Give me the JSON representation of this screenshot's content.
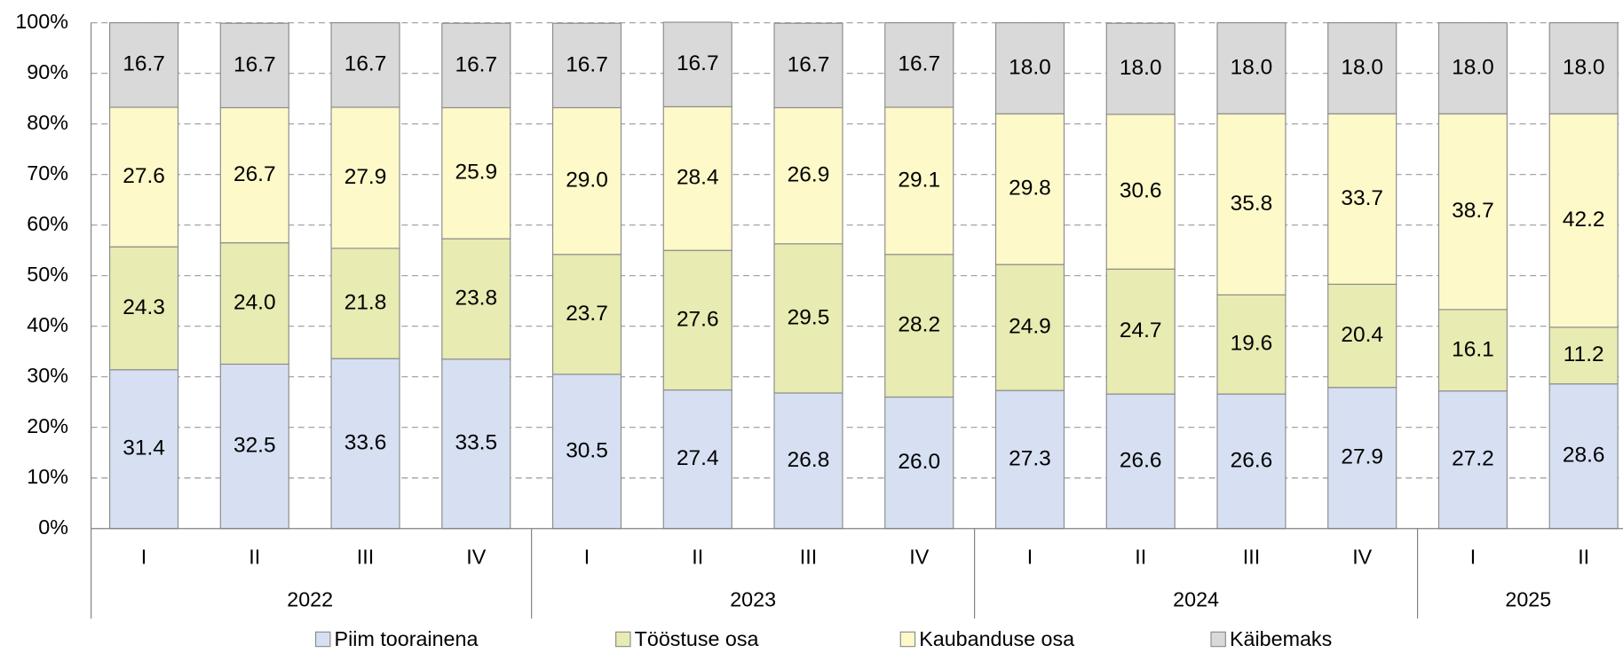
{
  "chart_data": {
    "type": "stacked_bar",
    "groups": [
      {
        "label": "2022",
        "categories": [
          "I",
          "II",
          "III",
          "IV"
        ]
      },
      {
        "label": "2023",
        "categories": [
          "I",
          "II",
          "III",
          "IV"
        ]
      },
      {
        "label": "2024",
        "categories": [
          "I",
          "II",
          "III",
          "IV"
        ]
      },
      {
        "label": "2025",
        "categories": [
          "I",
          "II"
        ]
      }
    ],
    "series": [
      {
        "name": "Piim toorainena",
        "color": "#d6e0f2",
        "values": [
          31.4,
          32.5,
          33.6,
          33.5,
          30.5,
          27.4,
          26.8,
          26.0,
          27.3,
          26.6,
          26.6,
          27.9,
          27.2,
          28.6
        ],
        "value_labels": [
          "31.4",
          "32.5",
          "33.6",
          "33.5",
          "30.5",
          "27.4",
          "26.8",
          "26.0",
          "27.3",
          "26.6",
          "26.6",
          "27.9",
          "27.2",
          "28.6"
        ]
      },
      {
        "name": "Tööstuse osa",
        "color": "#e8ebb2",
        "values": [
          24.3,
          24.0,
          21.8,
          23.8,
          23.7,
          27.6,
          29.5,
          28.2,
          24.9,
          24.7,
          19.6,
          20.4,
          16.1,
          11.2
        ],
        "value_labels": [
          "24.3",
          "24.0",
          "21.8",
          "23.8",
          "23.7",
          "27.6",
          "29.5",
          "28.2",
          "24.9",
          "24.7",
          "19.6",
          "20.4",
          "16.1",
          "11.2"
        ]
      },
      {
        "name": "Kaubanduse osa",
        "color": "#fdf9c9",
        "values": [
          27.6,
          26.7,
          27.9,
          25.9,
          29.0,
          28.4,
          26.9,
          29.1,
          29.8,
          30.6,
          35.8,
          33.7,
          38.7,
          42.2
        ],
        "value_labels": [
          "27.6",
          "26.7",
          "27.9",
          "25.9",
          "29.0",
          "28.4",
          "26.9",
          "29.1",
          "29.8",
          "30.6",
          "35.8",
          "33.7",
          "38.7",
          "42.2"
        ]
      },
      {
        "name": "Käibemaks",
        "color": "#d9d9d9",
        "values": [
          16.7,
          16.7,
          16.7,
          16.7,
          16.7,
          16.7,
          16.7,
          16.7,
          18.0,
          18.0,
          18.0,
          18.0,
          18.0,
          18.0
        ],
        "value_labels": [
          "16.7",
          "16.7",
          "16.7",
          "16.7",
          "16.7",
          "16.7",
          "16.7",
          "16.7",
          "18.0",
          "18.0",
          "18.0",
          "18.0",
          "18.0",
          "18.0"
        ]
      }
    ],
    "ylim": [
      0,
      100
    ],
    "yticks": [
      {
        "value": 0,
        "label": "0%"
      },
      {
        "value": 10,
        "label": "10%"
      },
      {
        "value": 20,
        "label": "20%"
      },
      {
        "value": 30,
        "label": "30%"
      },
      {
        "value": 40,
        "label": "40%"
      },
      {
        "value": 50,
        "label": "50%"
      },
      {
        "value": 60,
        "label": "60%"
      },
      {
        "value": 70,
        "label": "70%"
      },
      {
        "value": 80,
        "label": "80%"
      },
      {
        "value": 90,
        "label": "90%"
      },
      {
        "value": 100,
        "label": "100%"
      }
    ],
    "grid": true,
    "legend": "bottom"
  }
}
